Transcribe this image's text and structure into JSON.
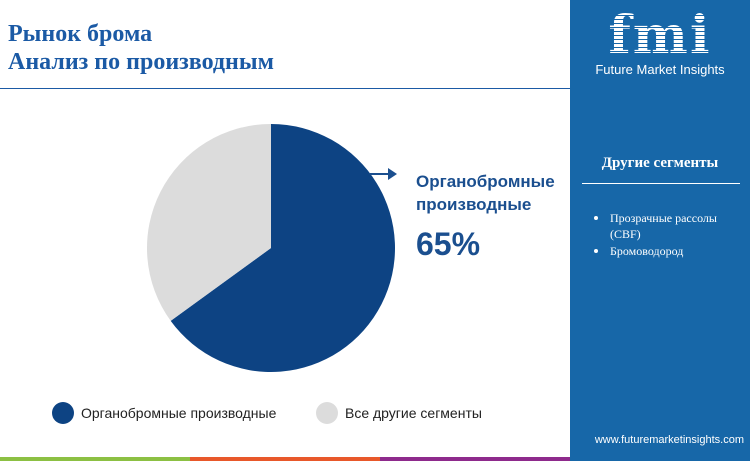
{
  "title": {
    "line1": "Рынок брома",
    "line2": "Анализ по производным"
  },
  "brand": {
    "logo": "fmi",
    "name": "Future Market Insights",
    "url": "www.futuremarketinsights.com"
  },
  "side_panel": {
    "title": "Другие сегменты",
    "items": [
      "Прозрачные рассолы (CBF)",
      "Бромоводород"
    ]
  },
  "callout": {
    "label": "Органобромные производные",
    "value": "65%"
  },
  "colors": {
    "primary": "#0d4383",
    "secondary": "#dcdcdc",
    "panel": "#1767a8",
    "green": "#8cc043",
    "orange": "#e8582a",
    "purple": "#8e2a8c"
  },
  "chart_data": {
    "type": "pie",
    "categories": [
      "Органобромные производные",
      "Все другие сегменты"
    ],
    "values": [
      65,
      35
    ],
    "colors": [
      "#0d4383",
      "#dcdcdc"
    ],
    "start": "top",
    "direction": "clockwise",
    "legend": "bottom"
  }
}
